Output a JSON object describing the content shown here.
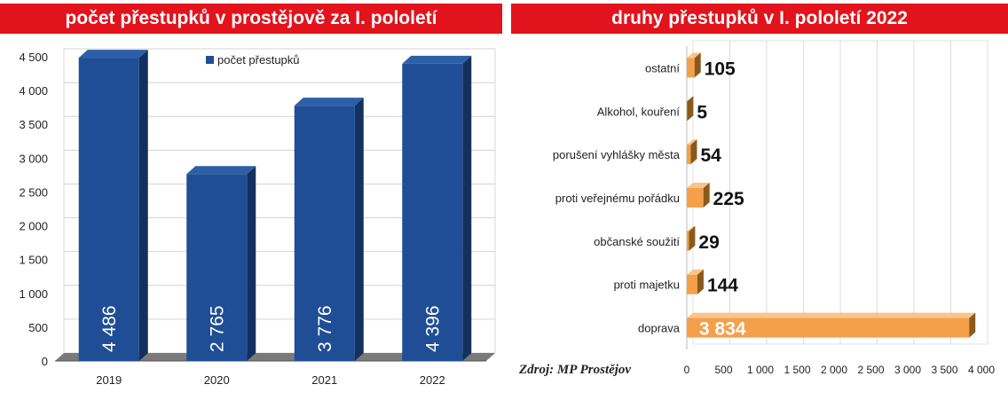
{
  "left_title": "počet přestupků v prostějově za I. pololetí",
  "right_title": "druhy přestupků v I. pololetí 2022",
  "source": "Zdroj: MP Prostějov",
  "colors": {
    "banner": "#e2131c",
    "bar_front": "#1f4e96",
    "bar_side": "#13305f",
    "bar_top": "#2d5fa8",
    "hbar_front": "#f4a04a",
    "hbar_end": "#8a5a1c"
  },
  "chart_data": [
    {
      "type": "bar",
      "title": "počet přestupků v prostějově za I. pololetí",
      "categories": [
        "2019",
        "2020",
        "2021",
        "2022"
      ],
      "values": [
        4486,
        2765,
        3776,
        4396
      ],
      "value_labels": [
        "4 486",
        "2 765",
        "3 776",
        "4 396"
      ],
      "series": [
        {
          "name": "počet přestupků",
          "values": [
            4486,
            2765,
            3776,
            4396
          ]
        }
      ],
      "ylim": [
        0,
        4500
      ],
      "y_ticks": [
        0,
        500,
        1000,
        1500,
        2000,
        2500,
        3000,
        3500,
        4000,
        4500
      ],
      "y_tick_labels": [
        "0",
        "500",
        "1 000",
        "1 500",
        "2 000",
        "2 500",
        "3 000",
        "3 500",
        "4 000",
        "4 500"
      ],
      "legend": "top-center",
      "grid": true
    },
    {
      "type": "bar",
      "orientation": "horizontal",
      "title": "druhy přestupků v I. pololetí 2022",
      "categories": [
        "ostatní",
        "Alkohol, kouření",
        "porušení vyhlášky města",
        "proti veřejnému pořádku",
        "občanské soužití",
        "proti majetku",
        "doprava"
      ],
      "values": [
        105,
        5,
        54,
        225,
        29,
        144,
        3834
      ],
      "value_labels": [
        "105",
        "5",
        "54",
        "225",
        "29",
        "144",
        "3 834"
      ],
      "xlim": [
        0,
        4000
      ],
      "x_ticks": [
        0,
        500,
        1000,
        1500,
        2000,
        2500,
        3000,
        3500,
        4000
      ],
      "x_tick_labels": [
        "0",
        "500",
        "1 000",
        "1 500",
        "2 000",
        "2 500",
        "3 000",
        "3 500",
        "4 000"
      ],
      "grid": true
    }
  ]
}
